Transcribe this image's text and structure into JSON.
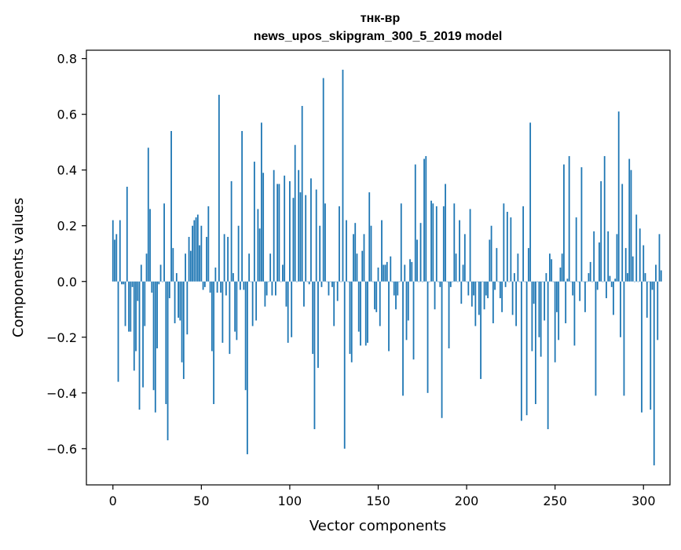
{
  "chart_data": {
    "type": "bar",
    "title_line1": "тнк-вр",
    "title_line2": "news_upos_skipgram_300_5_2019 model",
    "xlabel": "Vector components",
    "ylabel": "Components values",
    "xlim": [
      -15,
      315
    ],
    "ylim": [
      -0.73,
      0.83
    ],
    "xticks": [
      0,
      50,
      100,
      150,
      200,
      250,
      300
    ],
    "xtick_labels": [
      "0",
      "50",
      "100",
      "150",
      "200",
      "250",
      "300"
    ],
    "yticks": [
      -0.6,
      -0.4,
      -0.2,
      0.0,
      0.2,
      0.4,
      0.6,
      0.8
    ],
    "ytick_labels": [
      "−0.6",
      "−0.4",
      "−0.2",
      "0.0",
      "0.2",
      "0.4",
      "0.6",
      "0.8"
    ],
    "bar_color": "#1f77b4",
    "grid": false,
    "legend": "none",
    "values": [
      0.22,
      0.15,
      0.17,
      -0.36,
      0.22,
      -0.01,
      -0.01,
      -0.16,
      0.34,
      -0.18,
      -0.18,
      -0.02,
      -0.32,
      -0.25,
      -0.07,
      -0.46,
      0.06,
      -0.38,
      -0.16,
      0.1,
      0.48,
      0.26,
      -0.04,
      -0.39,
      -0.47,
      -0.24,
      -0.01,
      0.06,
      0.0,
      0.28,
      -0.44,
      -0.57,
      -0.06,
      0.54,
      0.12,
      -0.15,
      0.03,
      -0.13,
      -0.14,
      -0.29,
      -0.35,
      0.1,
      -0.19,
      0.16,
      0.11,
      0.2,
      0.22,
      0.23,
      0.24,
      0.13,
      0.2,
      -0.03,
      -0.02,
      0.16,
      0.27,
      -0.04,
      -0.25,
      -0.44,
      0.05,
      -0.04,
      0.67,
      -0.04,
      -0.22,
      0.17,
      -0.05,
      0.16,
      -0.26,
      0.36,
      0.03,
      -0.18,
      -0.21,
      0.2,
      -0.03,
      0.54,
      -0.03,
      -0.39,
      -0.62,
      0.1,
      0.0,
      -0.16,
      0.43,
      -0.14,
      0.26,
      0.19,
      0.57,
      0.39,
      -0.09,
      -0.05,
      0.0,
      0.1,
      -0.05,
      0.4,
      -0.05,
      0.35,
      0.35,
      0.0,
      0.06,
      0.38,
      -0.09,
      -0.22,
      0.36,
      -0.2,
      0.3,
      0.49,
      0.0,
      0.4,
      0.32,
      0.63,
      -0.09,
      0.31,
      0.0,
      -0.01,
      0.37,
      -0.26,
      -0.53,
      0.33,
      -0.31,
      0.2,
      -0.02,
      0.73,
      0.28,
      0.0,
      -0.05,
      0.0,
      -0.02,
      -0.16,
      0.0,
      -0.07,
      0.27,
      0.0,
      0.76,
      -0.6,
      0.22,
      0.0,
      -0.26,
      -0.29,
      0.17,
      0.21,
      0.1,
      -0.18,
      -0.23,
      0.11,
      0.17,
      -0.23,
      -0.22,
      0.32,
      0.2,
      0.0,
      -0.1,
      -0.11,
      0.05,
      -0.16,
      0.22,
      0.06,
      0.06,
      0.07,
      -0.25,
      0.09,
      0.0,
      -0.05,
      -0.1,
      -0.05,
      0.0,
      0.28,
      -0.41,
      0.06,
      -0.21,
      -0.14,
      0.08,
      0.07,
      -0.28,
      0.42,
      0.15,
      0.0,
      0.21,
      0.0,
      0.44,
      0.45,
      -0.4,
      0.0,
      0.29,
      0.28,
      -0.1,
      0.27,
      0.0,
      -0.02,
      -0.49,
      0.27,
      0.35,
      0.0,
      -0.24,
      -0.02,
      0.0,
      0.28,
      0.1,
      0.0,
      0.22,
      -0.08,
      0.06,
      0.17,
      0.0,
      -0.05,
      0.26,
      -0.09,
      -0.05,
      -0.16,
      0.0,
      -0.12,
      -0.35,
      0.0,
      -0.1,
      -0.05,
      -0.06,
      0.15,
      0.2,
      -0.15,
      -0.03,
      0.12,
      0.0,
      -0.06,
      -0.11,
      0.28,
      -0.02,
      0.25,
      0.0,
      0.23,
      -0.12,
      0.03,
      -0.16,
      0.1,
      0.0,
      -0.5,
      0.27,
      0.0,
      -0.48,
      0.12,
      0.57,
      -0.25,
      -0.08,
      -0.44,
      0.0,
      -0.2,
      -0.27,
      0.0,
      -0.14,
      0.03,
      -0.53,
      0.1,
      0.08,
      0.0,
      -0.29,
      -0.11,
      -0.21,
      0.05,
      0.1,
      0.42,
      -0.15,
      0.01,
      0.45,
      0.0,
      -0.05,
      -0.23,
      0.23,
      0.0,
      -0.07,
      0.41,
      0.0,
      -0.11,
      0.0,
      0.03,
      0.07,
      0.0,
      0.18,
      -0.41,
      -0.03,
      0.14,
      0.36,
      0.0,
      0.45,
      -0.06,
      0.18,
      0.02,
      -0.02,
      -0.12,
      0.01,
      0.17,
      0.61,
      -0.2,
      0.35,
      -0.41,
      0.12,
      0.03,
      0.44,
      0.4,
      0.09,
      0.0,
      0.24,
      0.0,
      0.19,
      -0.47,
      0.13,
      0.03,
      -0.13,
      0.0,
      -0.46,
      -0.03,
      -0.66,
      0.06,
      -0.21,
      0.17,
      0.04
    ]
  }
}
